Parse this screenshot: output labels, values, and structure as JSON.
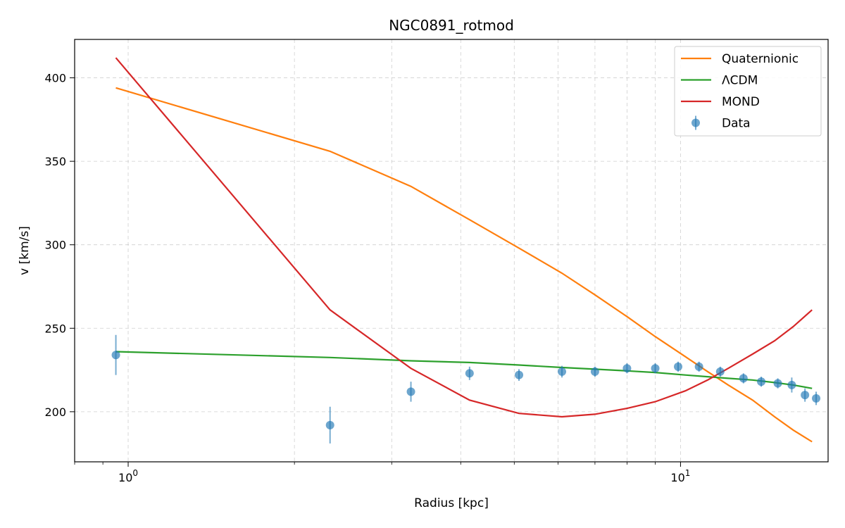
{
  "chart_data": {
    "type": "line",
    "title": "NGC0891_rotmod",
    "xlabel": "Radius [kpc]",
    "ylabel": "v [km/s]",
    "xscale": "log",
    "xlim": [
      0.8,
      18.5
    ],
    "ylim": [
      170,
      423
    ],
    "x_ticks": [
      {
        "value": 1,
        "base": "10",
        "exp": "0"
      },
      {
        "value": 10,
        "base": "10",
        "exp": "1"
      }
    ],
    "y_ticks": [
      200,
      250,
      300,
      350,
      400
    ],
    "grid": true,
    "legend_position": "top-right",
    "series": [
      {
        "name": "Quaternionic",
        "kind": "line",
        "color": "#ff7f0e",
        "x": [
          0.95,
          2.32,
          3.25,
          4.15,
          5.1,
          6.1,
          7.0,
          8.0,
          9.0,
          10.2,
          11.2,
          12.2,
          13.5,
          14.8,
          16.0,
          17.3
        ],
        "y": [
          394,
          356,
          335,
          315,
          298,
          283,
          270,
          257,
          245,
          233,
          224,
          216,
          207,
          197,
          189,
          182
        ]
      },
      {
        "name": "ΛCDM",
        "kind": "line",
        "color": "#2ca02c",
        "x": [
          0.95,
          2.32,
          3.25,
          4.15,
          5.1,
          6.1,
          7.0,
          8.0,
          9.0,
          10.2,
          11.2,
          12.2,
          13.5,
          14.8,
          16.0,
          17.3
        ],
        "y": [
          236,
          232.5,
          230.5,
          229.5,
          228,
          226.5,
          225.5,
          224.5,
          223.5,
          222,
          221,
          220,
          219,
          217.5,
          216,
          214
        ]
      },
      {
        "name": "MOND",
        "kind": "line",
        "color": "#d62728",
        "x": [
          0.95,
          2.32,
          3.25,
          4.15,
          5.1,
          6.1,
          7.0,
          8.0,
          9.0,
          10.2,
          11.2,
          12.2,
          13.5,
          14.8,
          16.0,
          17.3
        ],
        "y": [
          412,
          261,
          226,
          207,
          199,
          197,
          198.5,
          202,
          206,
          212.5,
          219,
          226,
          234.5,
          242.5,
          251,
          261
        ]
      },
      {
        "name": "Data",
        "kind": "scatter",
        "color": "#1f77b4",
        "x": [
          0.95,
          2.32,
          3.25,
          4.15,
          5.1,
          6.1,
          7.0,
          8.0,
          9.0,
          9.9,
          10.8,
          11.8,
          13.0,
          14.0,
          15.0,
          15.9,
          16.8,
          17.6
        ],
        "y": [
          234,
          192,
          212,
          223,
          222,
          224,
          224,
          226,
          226,
          227,
          227,
          224,
          220,
          218,
          217,
          216,
          210,
          208
        ],
        "err": [
          12,
          11,
          6,
          4,
          3.5,
          3.5,
          3,
          3,
          3,
          3,
          3,
          3,
          3,
          3,
          3,
          4.5,
          4,
          4
        ]
      }
    ]
  }
}
